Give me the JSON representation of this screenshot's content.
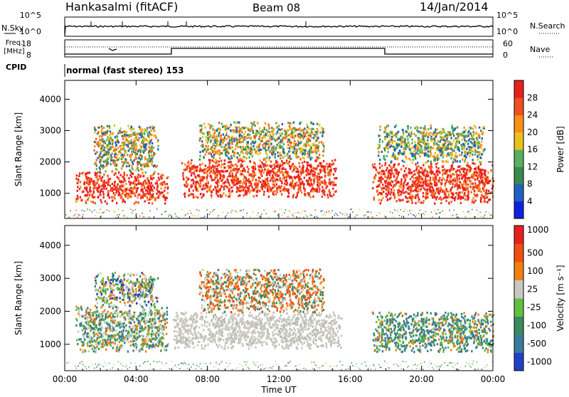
{
  "header": {
    "station": "Hankasalmi (fitACF)",
    "beam": "Beam 08",
    "date": "14/Jan/2014"
  },
  "top_panels": {
    "nsky_label": "N.Sky",
    "nsearch_label": "N.Search",
    "nsky_ticks": [
      "10^5",
      "10^0"
    ],
    "nsearch_ticks": [
      "10^5",
      "10^0"
    ],
    "freq_label_1": "Freq.",
    "freq_label_2": "[MHz]",
    "freq_ticks": [
      "18",
      "8"
    ],
    "nave_ticks": [
      "60",
      "0"
    ],
    "nave_label": "Nave",
    "cpid_label": "CPID",
    "cpid_text": "normal (fast stereo) 153"
  },
  "chart_data": [
    {
      "type": "heatmap",
      "name": "power-panel",
      "ylabel": "Slant Range [km]",
      "xlabel": "",
      "x_ticks": [
        "00:00",
        "04:00",
        "08:00",
        "12:00",
        "16:00",
        "20:00",
        "00:00"
      ],
      "y_ticks": [
        1000,
        2000,
        3000,
        4000
      ],
      "ylim": [
        200,
        4600
      ],
      "xlim_hours": [
        0,
        24
      ],
      "colorbar": {
        "label": "Power [dB]",
        "ticks": [
          "4",
          "8",
          "12",
          "16",
          "20",
          "24",
          "28"
        ],
        "colors": [
          "#1020e0",
          "#2060c0",
          "#3a8a50",
          "#58b060",
          "#e8c020",
          "#f89018",
          "#f05020",
          "#e82020"
        ]
      },
      "regions": [
        {
          "t0": 0.6,
          "t1": 5.8,
          "r0": 700,
          "r1": 1700,
          "level": "high"
        },
        {
          "t0": 1.6,
          "t1": 5.2,
          "r0": 1700,
          "r1": 3200,
          "level": "mid"
        },
        {
          "t0": 6.5,
          "t1": 15.2,
          "r0": 900,
          "r1": 2100,
          "level": "high"
        },
        {
          "t0": 7.5,
          "t1": 14.5,
          "r0": 2100,
          "r1": 3300,
          "level": "mid"
        },
        {
          "t0": 17.2,
          "t1": 24.0,
          "r0": 700,
          "r1": 2000,
          "level": "high"
        },
        {
          "t0": 17.5,
          "t1": 23.5,
          "r0": 2000,
          "r1": 3200,
          "level": "low"
        }
      ]
    },
    {
      "type": "heatmap",
      "name": "velocity-panel",
      "ylabel": "Slant Range [km]",
      "xlabel": "Time UT",
      "x_ticks": [
        "00:00",
        "04:00",
        "08:00",
        "12:00",
        "16:00",
        "20:00",
        "00:00"
      ],
      "y_ticks": [
        1000,
        2000,
        3000,
        4000
      ],
      "ylim": [
        200,
        4600
      ],
      "xlim_hours": [
        0,
        24
      ],
      "colorbar": {
        "label": "Velocity [m s⁻¹]",
        "ticks": [
          "1000",
          "500",
          "100",
          "25",
          "-25",
          "-100",
          "-500",
          "-1000"
        ],
        "colors": [
          "#2040c8",
          "#3a7a9a",
          "#3a8a60",
          "#60c040",
          "#c8c8c0",
          "#f08010",
          "#f05010",
          "#e82020"
        ]
      },
      "regions": [
        {
          "t0": 6.0,
          "t1": 15.5,
          "r0": 900,
          "r1": 2000,
          "level": "gray"
        },
        {
          "t0": 0.6,
          "t1": 5.8,
          "r0": 800,
          "r1": 2200,
          "level": "green"
        },
        {
          "t0": 1.6,
          "t1": 5.2,
          "r0": 2200,
          "r1": 3200,
          "level": "mixed"
        },
        {
          "t0": 7.5,
          "t1": 14.5,
          "r0": 2000,
          "r1": 3300,
          "level": "orange"
        },
        {
          "t0": 17.2,
          "t1": 24.0,
          "r0": 800,
          "r1": 2000,
          "level": "teal"
        }
      ]
    }
  ]
}
